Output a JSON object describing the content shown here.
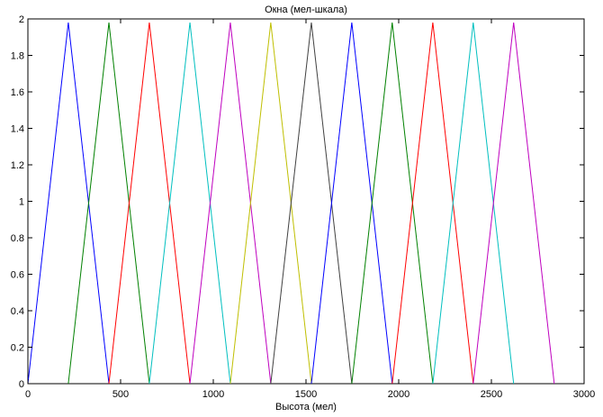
{
  "chart_data": {
    "type": "line",
    "title": "Окна (мел-шкала)",
    "xlabel": "Высота (мел)",
    "ylabel": "",
    "xlim": [
      0,
      3000
    ],
    "ylim": [
      0,
      2
    ],
    "grid": false,
    "legend": "none",
    "xticks": [
      {
        "value": 0,
        "label": "0"
      },
      {
        "value": 500,
        "label": "500"
      },
      {
        "value": 1000,
        "label": "1000"
      },
      {
        "value": 1500,
        "label": "1500"
      },
      {
        "value": 2000,
        "label": "2000"
      },
      {
        "value": 2500,
        "label": "2500"
      },
      {
        "value": 3000,
        "label": "3000"
      }
    ],
    "yticks": [
      {
        "value": 0,
        "label": "0"
      },
      {
        "value": 0.2,
        "label": "0.2"
      },
      {
        "value": 0.4,
        "label": "0.4"
      },
      {
        "value": 0.6,
        "label": "0.6"
      },
      {
        "value": 0.8,
        "label": "0.8"
      },
      {
        "value": 1,
        "label": "1"
      },
      {
        "value": 1.2,
        "label": "1.2"
      },
      {
        "value": 1.4,
        "label": "1.4"
      },
      {
        "value": 1.6,
        "label": "1.6"
      },
      {
        "value": 1.8,
        "label": "1.8"
      },
      {
        "value": 2,
        "label": "2"
      }
    ],
    "series": [
      {
        "color": "#0000ff",
        "x": [
          0,
          218,
          437
        ],
        "y": [
          0,
          1.98,
          0
        ]
      },
      {
        "color": "#008000",
        "x": [
          218,
          437,
          655
        ],
        "y": [
          0,
          1.98,
          0
        ]
      },
      {
        "color": "#ff0000",
        "x": [
          437,
          655,
          874
        ],
        "y": [
          0,
          1.98,
          0
        ]
      },
      {
        "color": "#00bfbf",
        "x": [
          655,
          874,
          1092
        ],
        "y": [
          0,
          1.98,
          0
        ]
      },
      {
        "color": "#bf00bf",
        "x": [
          874,
          1092,
          1310
        ],
        "y": [
          0,
          1.98,
          0
        ]
      },
      {
        "color": "#bfbf00",
        "x": [
          1092,
          1310,
          1529
        ],
        "y": [
          0,
          1.98,
          0
        ]
      },
      {
        "color": "#404040",
        "x": [
          1310,
          1529,
          1747
        ],
        "y": [
          0,
          1.98,
          0
        ]
      },
      {
        "color": "#0000ff",
        "x": [
          1529,
          1747,
          1965
        ],
        "y": [
          0,
          1.98,
          0
        ]
      },
      {
        "color": "#008000",
        "x": [
          1747,
          1965,
          2184
        ],
        "y": [
          0,
          1.98,
          0
        ]
      },
      {
        "color": "#ff0000",
        "x": [
          1965,
          2184,
          2402
        ],
        "y": [
          0,
          1.98,
          0
        ]
      },
      {
        "color": "#00bfbf",
        "x": [
          2184,
          2402,
          2620
        ],
        "y": [
          0,
          1.98,
          0
        ]
      },
      {
        "color": "#bf00bf",
        "x": [
          2402,
          2620,
          2839
        ],
        "y": [
          0,
          1.98,
          0
        ]
      }
    ]
  }
}
